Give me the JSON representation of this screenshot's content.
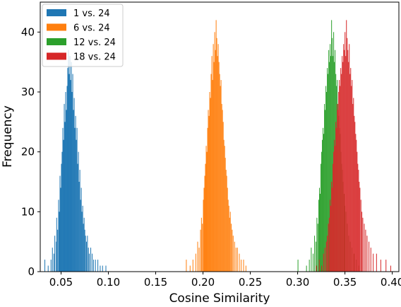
{
  "chart_data": {
    "type": "histogram",
    "title": "",
    "xlabel": "Cosine Similarity",
    "ylabel": "Frequency",
    "xlim": [
      0.028,
      0.407
    ],
    "ylim": [
      0,
      45
    ],
    "xticks": [
      0.05,
      0.1,
      0.15,
      0.2,
      0.25,
      0.3,
      0.35,
      0.4
    ],
    "xtick_labels": [
      "0.05",
      "0.10",
      "0.15",
      "0.20",
      "0.25",
      "0.30",
      "0.35",
      "0.40"
    ],
    "yticks": [
      0,
      10,
      20,
      30,
      40
    ],
    "ytick_labels": [
      "0",
      "10",
      "20",
      "30",
      "40"
    ],
    "grid": false,
    "legend_position": "top-left",
    "series": [
      {
        "name": "1 vs. 24",
        "color": "#1f77b4",
        "bin_width": 0.00075,
        "bin_starts": [
          0.0325,
          0.036,
          0.039,
          0.0405,
          0.042,
          0.043,
          0.0445,
          0.045,
          0.046,
          0.047,
          0.0478,
          0.0485,
          0.0492,
          0.05,
          0.0507,
          0.0515,
          0.0522,
          0.053,
          0.0537,
          0.0545,
          0.0552,
          0.056,
          0.0567,
          0.0575,
          0.0582,
          0.059,
          0.0597,
          0.0605,
          0.0612,
          0.062,
          0.0627,
          0.0635,
          0.0642,
          0.065,
          0.0657,
          0.0665,
          0.0672,
          0.068,
          0.0687,
          0.0695,
          0.0702,
          0.071,
          0.0717,
          0.0725,
          0.0732,
          0.074,
          0.0747,
          0.0755,
          0.0765,
          0.0775,
          0.0785,
          0.0795,
          0.081,
          0.0825,
          0.084,
          0.086,
          0.0885,
          0.091,
          0.0935,
          0.097
        ],
        "counts": [
          2,
          1,
          2,
          4,
          3,
          6,
          5,
          9,
          7,
          12,
          10,
          16,
          14,
          18,
          20,
          24,
          22,
          28,
          25,
          30,
          27,
          31,
          34,
          37,
          33,
          36,
          32,
          35,
          30,
          33,
          27,
          29,
          24,
          26,
          22,
          24,
          18,
          20,
          15,
          17,
          12,
          14,
          10,
          11,
          8,
          9,
          7,
          6,
          5,
          6,
          4,
          3,
          4,
          3,
          2,
          2,
          2,
          1,
          1,
          1
        ]
      },
      {
        "name": "6 vs. 24",
        "color": "#ff7f0e",
        "bin_width": 0.00075,
        "bin_starts": [
          0.182,
          0.186,
          0.189,
          0.192,
          0.194,
          0.1955,
          0.197,
          0.198,
          0.199,
          0.2,
          0.2007,
          0.2015,
          0.2022,
          0.203,
          0.2037,
          0.2045,
          0.2052,
          0.206,
          0.2067,
          0.2075,
          0.2082,
          0.209,
          0.2097,
          0.2105,
          0.2112,
          0.212,
          0.2127,
          0.2135,
          0.2142,
          0.215,
          0.2157,
          0.2165,
          0.2172,
          0.218,
          0.2187,
          0.2195,
          0.2202,
          0.221,
          0.2217,
          0.2225,
          0.2232,
          0.224,
          0.2247,
          0.2255,
          0.2262,
          0.227,
          0.2277,
          0.2285,
          0.2295,
          0.2305,
          0.2315,
          0.233,
          0.2345,
          0.236,
          0.238,
          0.24,
          0.2425,
          0.245
        ],
        "counts": [
          2,
          1,
          2,
          3,
          5,
          4,
          7,
          9,
          8,
          12,
          14,
          16,
          18,
          21,
          20,
          24,
          27,
          26,
          30,
          29,
          33,
          36,
          32,
          38,
          35,
          40,
          37,
          42,
          39,
          36,
          38,
          35,
          33,
          31,
          32,
          28,
          27,
          25,
          22,
          21,
          19,
          17,
          16,
          14,
          12,
          11,
          9,
          10,
          8,
          7,
          6,
          5,
          4,
          4,
          3,
          2,
          2,
          1
        ]
      },
      {
        "name": "12 vs. 24",
        "color": "#2ca02c",
        "bin_width": 0.00075,
        "bin_starts": [
          0.3,
          0.309,
          0.312,
          0.314,
          0.316,
          0.3175,
          0.319,
          0.32,
          0.321,
          0.322,
          0.3227,
          0.3235,
          0.3242,
          0.325,
          0.3257,
          0.3265,
          0.3272,
          0.328,
          0.3287,
          0.3295,
          0.3302,
          0.331,
          0.3317,
          0.3325,
          0.3332,
          0.334,
          0.3347,
          0.3355,
          0.3362,
          0.337,
          0.3377,
          0.3385,
          0.3392,
          0.34,
          0.3407,
          0.3415,
          0.3422,
          0.343,
          0.3437,
          0.3445,
          0.3452,
          0.346,
          0.3467,
          0.3475,
          0.3485,
          0.3495,
          0.3505,
          0.352,
          0.3535,
          0.355,
          0.357,
          0.359,
          0.3615,
          0.364
        ],
        "counts": [
          2,
          1,
          2,
          4,
          3,
          6,
          5,
          9,
          8,
          12,
          14,
          13,
          18,
          20,
          22,
          24,
          23,
          28,
          27,
          31,
          30,
          34,
          33,
          37,
          35,
          38,
          36,
          42,
          39,
          36,
          40,
          35,
          37,
          33,
          31,
          32,
          28,
          26,
          24,
          23,
          20,
          18,
          17,
          15,
          13,
          11,
          10,
          8,
          6,
          5,
          4,
          3,
          2,
          1
        ]
      },
      {
        "name": "18 vs. 24",
        "color": "#d62728",
        "bin_width": 0.00075,
        "bin_starts": [
          0.3195,
          0.3225,
          0.325,
          0.327,
          0.3285,
          0.33,
          0.331,
          0.332,
          0.333,
          0.334,
          0.3347,
          0.3355,
          0.3362,
          0.337,
          0.3377,
          0.3385,
          0.3392,
          0.34,
          0.3407,
          0.3415,
          0.3422,
          0.343,
          0.3437,
          0.3445,
          0.3452,
          0.346,
          0.3467,
          0.3475,
          0.3482,
          0.349,
          0.3497,
          0.3505,
          0.3512,
          0.352,
          0.3527,
          0.3535,
          0.3542,
          0.355,
          0.3557,
          0.3565,
          0.3572,
          0.358,
          0.3587,
          0.3595,
          0.3602,
          0.361,
          0.3617,
          0.3625,
          0.3632,
          0.364,
          0.3647,
          0.3655,
          0.3665,
          0.3675,
          0.3685,
          0.37,
          0.3715,
          0.373,
          0.375,
          0.377,
          0.3795,
          0.383,
          0.3875,
          0.393,
          0.398
        ],
        "counts": [
          1,
          2,
          1,
          3,
          4,
          5,
          6,
          8,
          9,
          12,
          11,
          15,
          14,
          18,
          20,
          22,
          21,
          25,
          24,
          28,
          27,
          30,
          32,
          31,
          34,
          33,
          36,
          35,
          38,
          37,
          40,
          36,
          42,
          39,
          37,
          35,
          38,
          33,
          34,
          31,
          32,
          28,
          29,
          26,
          25,
          23,
          22,
          20,
          18,
          17,
          15,
          14,
          12,
          10,
          9,
          8,
          7,
          6,
          5,
          4,
          3,
          3,
          2,
          2,
          1
        ]
      }
    ]
  }
}
